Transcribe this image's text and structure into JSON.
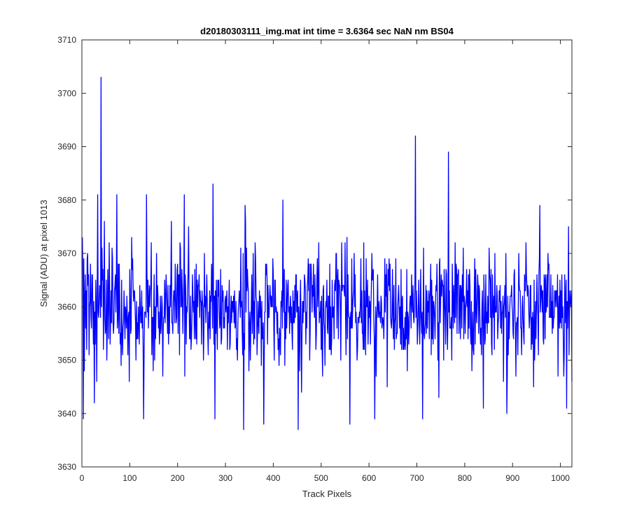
{
  "chart_data": {
    "type": "line",
    "title": "d20180303111_img.mat int time = 3.6364 sec  NaN nm BS04",
    "xlabel": "Track Pixels",
    "ylabel": "Signal (ADU) at pixel 1013",
    "xlim": [
      0,
      1024
    ],
    "ylim": [
      3630,
      3710
    ],
    "xticks": [
      0,
      100,
      200,
      300,
      400,
      500,
      600,
      700,
      800,
      900,
      1000
    ],
    "yticks": [
      3630,
      3640,
      3650,
      3660,
      3670,
      3680,
      3690,
      3700,
      3710
    ],
    "grid": false,
    "series": [
      {
        "color": "#0000ff",
        "x_start": 1,
        "x_step": 1,
        "count": 1024,
        "mean": 3660,
        "noise": 5.5,
        "min_value": 3637,
        "max_value": 3703,
        "highlights": [
          {
            "x": 1,
            "y": 3673
          },
          {
            "x": 3,
            "y": 3639
          },
          {
            "x": 33,
            "y": 3681
          },
          {
            "x": 40,
            "y": 3703
          },
          {
            "x": 47,
            "y": 3676
          },
          {
            "x": 73,
            "y": 3681
          },
          {
            "x": 129,
            "y": 3639
          },
          {
            "x": 135,
            "y": 3681
          },
          {
            "x": 214,
            "y": 3681
          },
          {
            "x": 274,
            "y": 3683
          },
          {
            "x": 278,
            "y": 3639
          },
          {
            "x": 338,
            "y": 3637
          },
          {
            "x": 341,
            "y": 3679
          },
          {
            "x": 380,
            "y": 3638
          },
          {
            "x": 420,
            "y": 3680
          },
          {
            "x": 452,
            "y": 3637
          },
          {
            "x": 560,
            "y": 3638
          },
          {
            "x": 612,
            "y": 3639
          },
          {
            "x": 697,
            "y": 3692
          },
          {
            "x": 712,
            "y": 3639
          },
          {
            "x": 766,
            "y": 3689
          },
          {
            "x": 839,
            "y": 3641
          },
          {
            "x": 888,
            "y": 3640
          },
          {
            "x": 957,
            "y": 3679
          },
          {
            "x": 1013,
            "y": 3641
          },
          {
            "x": 1017,
            "y": 3675
          },
          {
            "x": 1024,
            "y": 3646
          }
        ]
      }
    ]
  },
  "colors": {
    "line": "#0000ff",
    "axis": "#262626",
    "background": "#ffffff"
  }
}
